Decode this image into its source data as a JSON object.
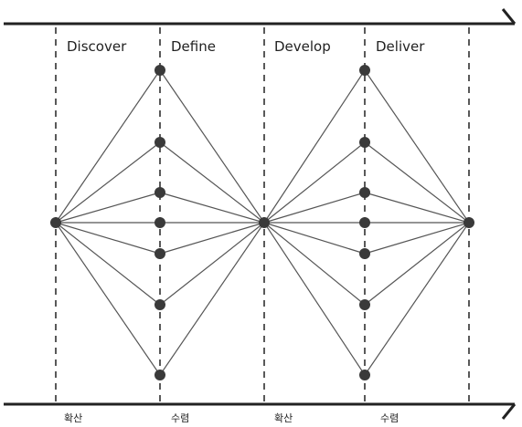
{
  "phases": [
    "Discover",
    "Define",
    "Develop",
    "Deliver"
  ],
  "bottom_labels": [
    "확산",
    "수렴",
    "확산",
    "수렴"
  ],
  "colors": {
    "line": "#555555",
    "node": "#3a3a3a",
    "divider": "#222222",
    "text": "#222222"
  }
}
